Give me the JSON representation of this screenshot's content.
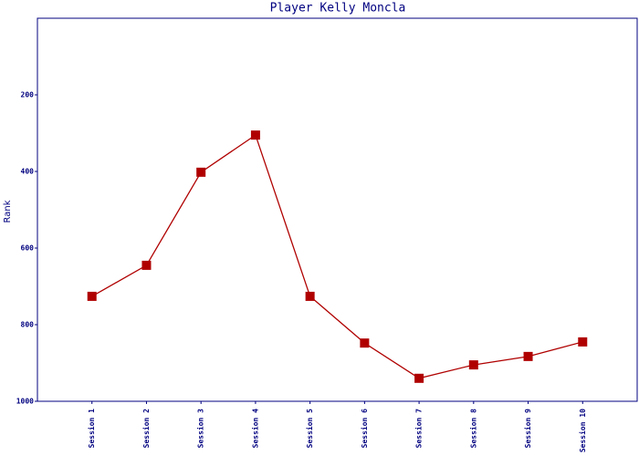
{
  "chart_data": {
    "type": "line",
    "title": "Player Kelly Moncla",
    "y_label": "Rank",
    "categories": [
      "Session 1",
      "Session 2",
      "Session 3",
      "Session 4",
      "Session 5",
      "Session 6",
      "Session 7",
      "Session 8",
      "Session 9",
      "Session 10"
    ],
    "series": [
      {
        "name": "Rank",
        "color": "#b00000",
        "values": [
          726,
          645,
          402,
          305,
          726,
          848,
          940,
          905,
          883,
          845
        ]
      }
    ],
    "ylim": [
      1000,
      0
    ],
    "yticks": [
      200,
      400,
      600,
      800,
      1000
    ],
    "grid": false
  }
}
